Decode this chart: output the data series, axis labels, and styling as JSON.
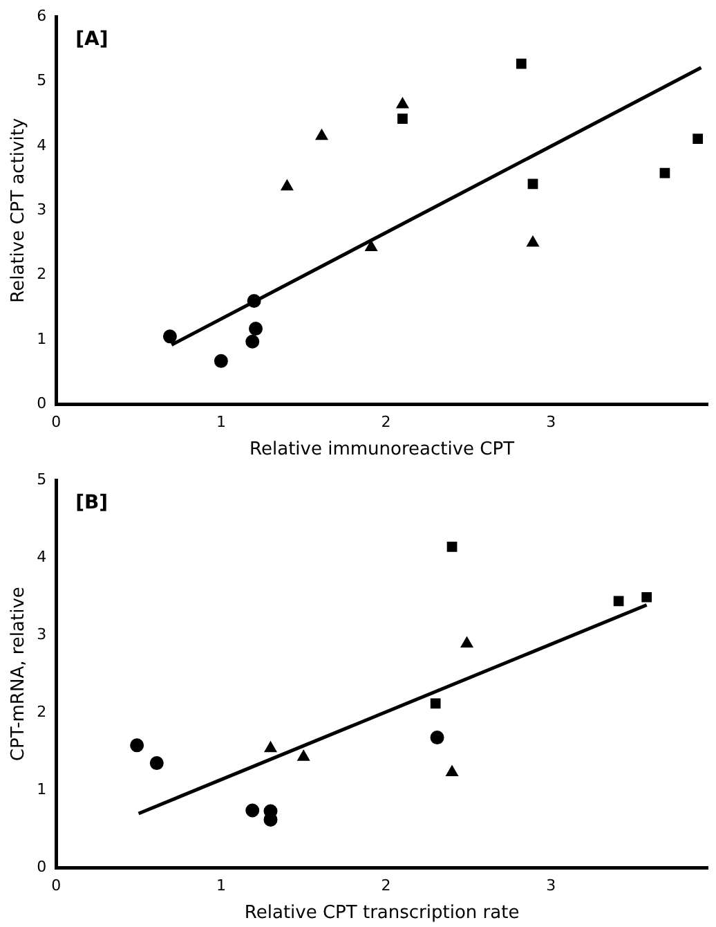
{
  "chart_data": [
    {
      "type": "scatter",
      "xlabel": "Relative immunoreactive CPT",
      "ylabel": "Relative CPT activity",
      "annotations": [
        "[A]"
      ],
      "xlim": [
        0,
        3.95
      ],
      "ylim": [
        0,
        6
      ],
      "xticks": [
        0,
        1,
        2,
        3
      ],
      "yticks": [
        0,
        1,
        2,
        3,
        4,
        5,
        6
      ],
      "grid": false,
      "legend": false,
      "series": [
        {
          "color": "#000000",
          "marker": "circle",
          "x": [
            0.69,
            1.0,
            1.19,
            1.21,
            1.2
          ],
          "values": [
            1.05,
            0.67,
            0.97,
            1.17,
            1.6
          ]
        },
        {
          "color": "#000000",
          "marker": "triangle",
          "x": [
            1.4,
            1.61,
            1.91,
            2.1,
            2.89
          ],
          "values": [
            3.37,
            4.15,
            2.43,
            4.64,
            2.5
          ]
        },
        {
          "color": "#000000",
          "marker": "square",
          "x": [
            2.82,
            2.1,
            2.89,
            3.69,
            3.89
          ],
          "values": [
            5.27,
            4.42,
            3.41,
            3.58,
            4.11
          ]
        },
        {
          "type": "line",
          "color": "#000000",
          "marker": "none",
          "x": [
            0.7,
            3.91
          ],
          "values": [
            0.92,
            5.21
          ]
        }
      ]
    },
    {
      "type": "scatter",
      "xlabel": "Relative CPT transcription rate",
      "ylabel": "CPT-mRNA, relative",
      "annotations": [
        "[B]"
      ],
      "xlim": [
        0,
        3.95
      ],
      "ylim": [
        0,
        5
      ],
      "xticks": [
        0,
        1,
        2,
        3
      ],
      "yticks": [
        0,
        1,
        2,
        3,
        4,
        5
      ],
      "grid": false,
      "legend": false,
      "series": [
        {
          "color": "#000000",
          "marker": "circle",
          "x": [
            0.49,
            0.61,
            1.19,
            1.3,
            1.3,
            2.31
          ],
          "values": [
            1.58,
            1.35,
            0.74,
            0.73,
            0.62,
            1.68
          ]
        },
        {
          "color": "#000000",
          "marker": "triangle",
          "x": [
            1.3,
            1.5,
            2.49,
            2.4
          ],
          "values": [
            1.54,
            1.43,
            2.89,
            1.23
          ]
        },
        {
          "color": "#000000",
          "marker": "square",
          "x": [
            2.4,
            2.3,
            3.41,
            3.58
          ],
          "values": [
            4.14,
            2.12,
            3.44,
            3.49
          ]
        },
        {
          "type": "line",
          "color": "#000000",
          "marker": "none",
          "x": [
            0.5,
            3.58
          ],
          "values": [
            0.7,
            3.39
          ]
        }
      ]
    }
  ]
}
